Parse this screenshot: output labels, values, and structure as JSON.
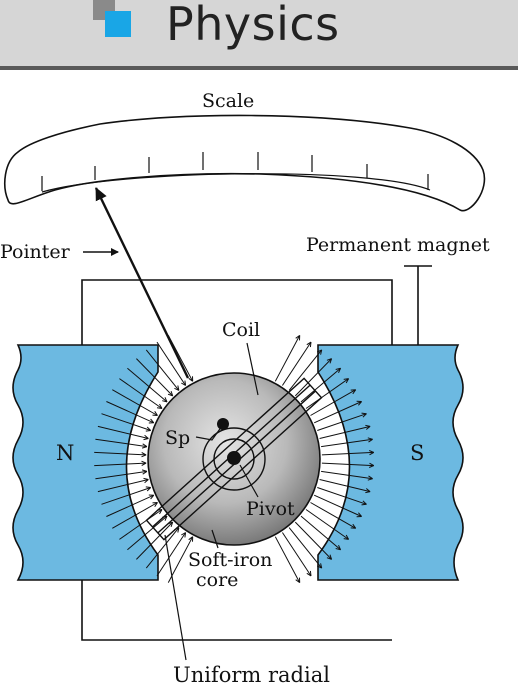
{
  "header": {
    "title": "Physics",
    "icon": "square-bullet-icon",
    "accent_color": "#19a6e6"
  },
  "diagram": {
    "labels": {
      "scale": "Scale",
      "pointer": "Pointer",
      "permanent_magnet": "Permanent magnet",
      "coil": "Coil",
      "spring": "Sp",
      "pole_north": "N",
      "pole_south": "S",
      "pivot": "Pivot",
      "soft_iron_core_line1": "Soft-iron",
      "soft_iron_core_line2": "core",
      "uniform_radial": "Uniform radial"
    },
    "colors": {
      "magnet": "#6cb9e1",
      "core_light": "#d9d9d9",
      "core_dark": "#7a7a7a",
      "line": "#111111"
    }
  }
}
